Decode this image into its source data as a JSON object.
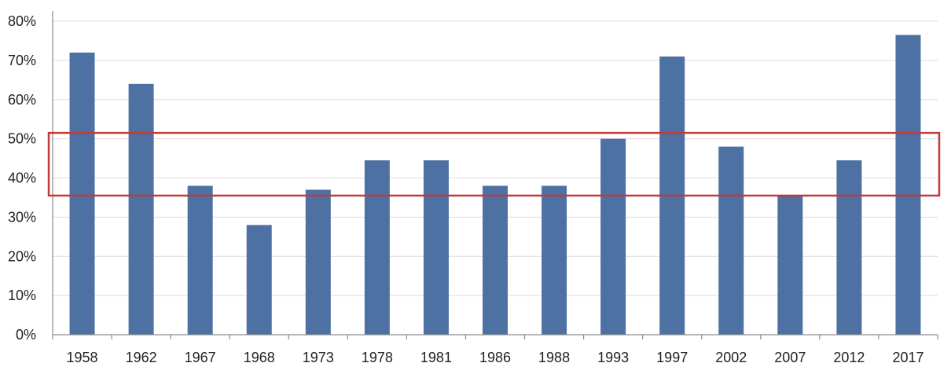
{
  "chart_data": {
    "type": "bar",
    "categories": [
      "1958",
      "1962",
      "1967",
      "1968",
      "1973",
      "1978",
      "1981",
      "1986",
      "1988",
      "1993",
      "1997",
      "2002",
      "2007",
      "2012",
      "2017"
    ],
    "values": [
      72,
      64,
      38,
      28,
      37,
      44.5,
      44.5,
      38,
      38,
      50,
      71,
      48,
      35.5,
      44.5,
      76.5
    ],
    "y_ticks": [
      "0%",
      "10%",
      "20%",
      "30%",
      "40%",
      "50%",
      "60%",
      "70%",
      "80%"
    ],
    "ylim": [
      0,
      80
    ],
    "y_tick_step": 10,
    "grid": true,
    "legend": "none",
    "highlight_band": {
      "from": 35.5,
      "to": 51.5
    },
    "colors": {
      "bar": "#4e71a4",
      "highlight": "#c23b3b",
      "grid": "#dcdcdc",
      "axis": "#8c8c8c"
    }
  }
}
